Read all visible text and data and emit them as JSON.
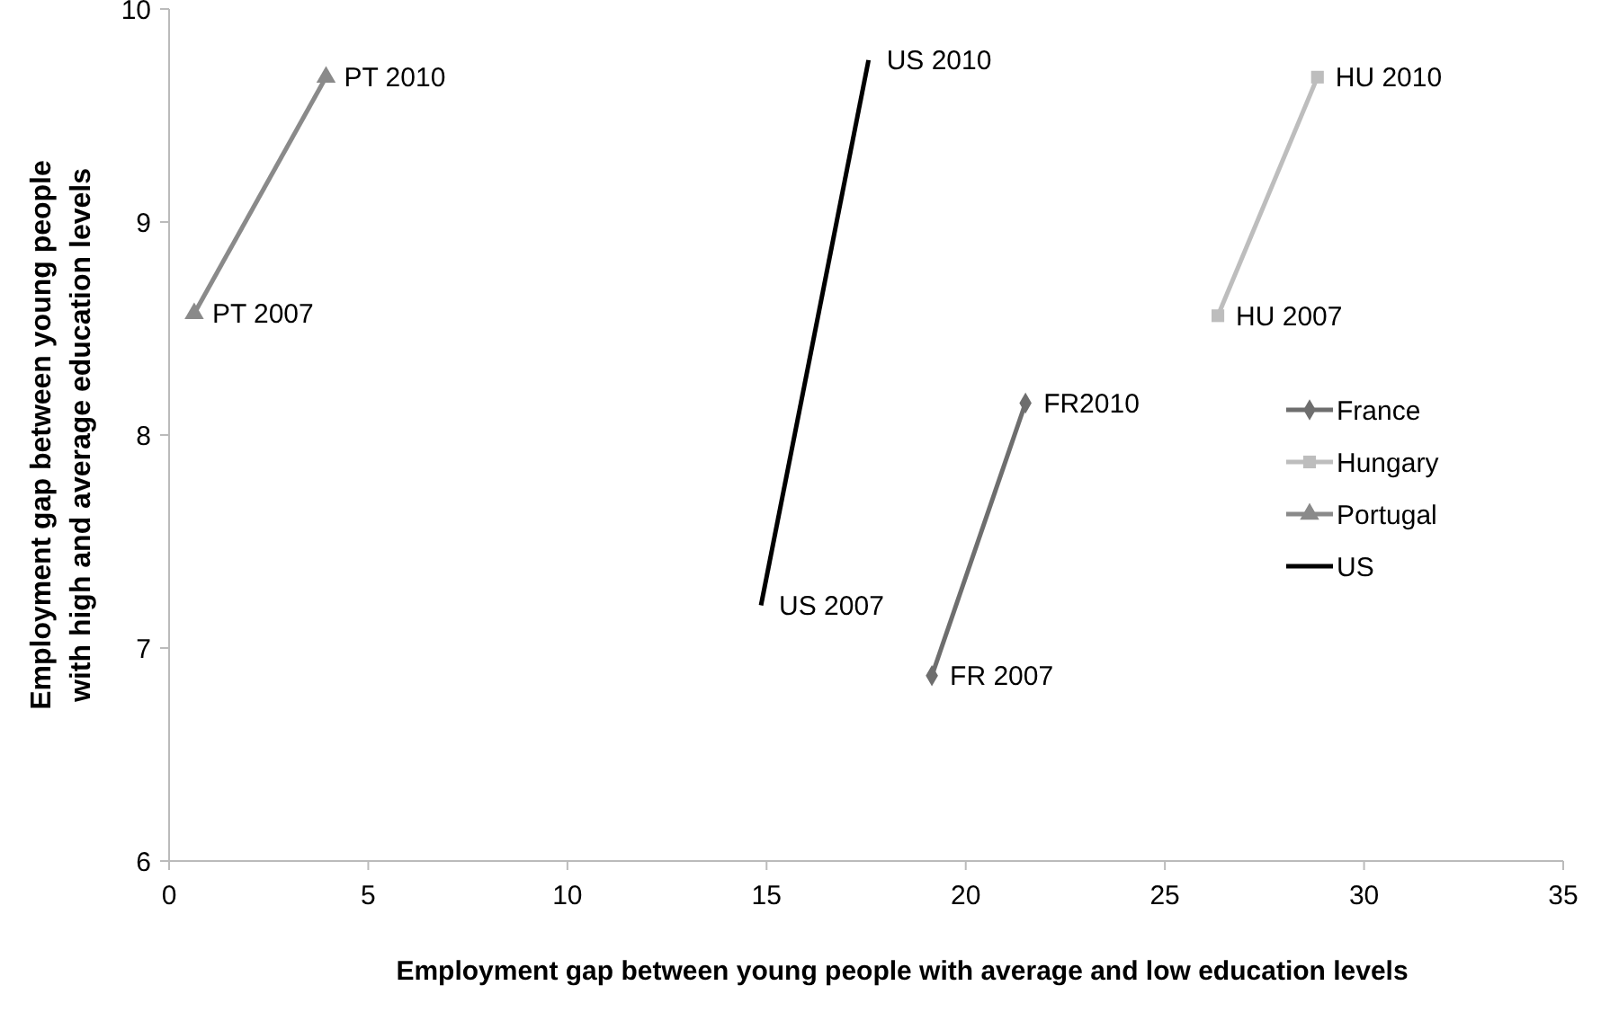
{
  "chart_data": {
    "type": "line",
    "xlabel": "Employment gap between young people with average and low education levels",
    "ylabel": "Employment gap between young people\nwith high and average education levels",
    "xlim": [
      0,
      35
    ],
    "xticks": [
      0,
      5,
      10,
      15,
      20,
      25,
      30,
      35
    ],
    "ylim": [
      6,
      10
    ],
    "yticks": [
      6,
      7,
      8,
      9,
      10
    ],
    "grid": false,
    "legend": "right",
    "line_style": "solid",
    "series": [
      {
        "name": "France",
        "color": "#6e6e6e",
        "marker": "diamond",
        "x": [
          19.15,
          21.5
        ],
        "values": [
          6.87,
          8.15
        ]
      },
      {
        "name": "Hungary",
        "color": "#bdbdbd",
        "marker": "square",
        "x": [
          26.33,
          28.83
        ],
        "values": [
          8.56,
          9.68
        ]
      },
      {
        "name": "Portugal",
        "color": "#8a8a8a",
        "marker": "triangle",
        "x": [
          0.63,
          3.94
        ],
        "values": [
          8.57,
          9.68
        ]
      },
      {
        "name": "US",
        "color": "#000000",
        "marker": "none",
        "x": [
          14.86,
          17.56
        ],
        "values": [
          7.2,
          9.76
        ]
      }
    ],
    "annotations": [
      {
        "text": "PT 2007",
        "x": 0.63,
        "y": 8.57
      },
      {
        "text": "PT 2010",
        "x": 3.94,
        "y": 9.68
      },
      {
        "text": "US 2007",
        "x": 14.86,
        "y": 7.2
      },
      {
        "text": "US 2010",
        "x": 17.56,
        "y": 9.76
      },
      {
        "text": "FR 2007",
        "x": 19.15,
        "y": 6.87
      },
      {
        "text": "FR2010",
        "x": 21.5,
        "y": 8.15
      },
      {
        "text": "HU 2007",
        "x": 26.33,
        "y": 8.56
      },
      {
        "text": "HU 2010",
        "x": 28.83,
        "y": 9.68
      }
    ]
  }
}
